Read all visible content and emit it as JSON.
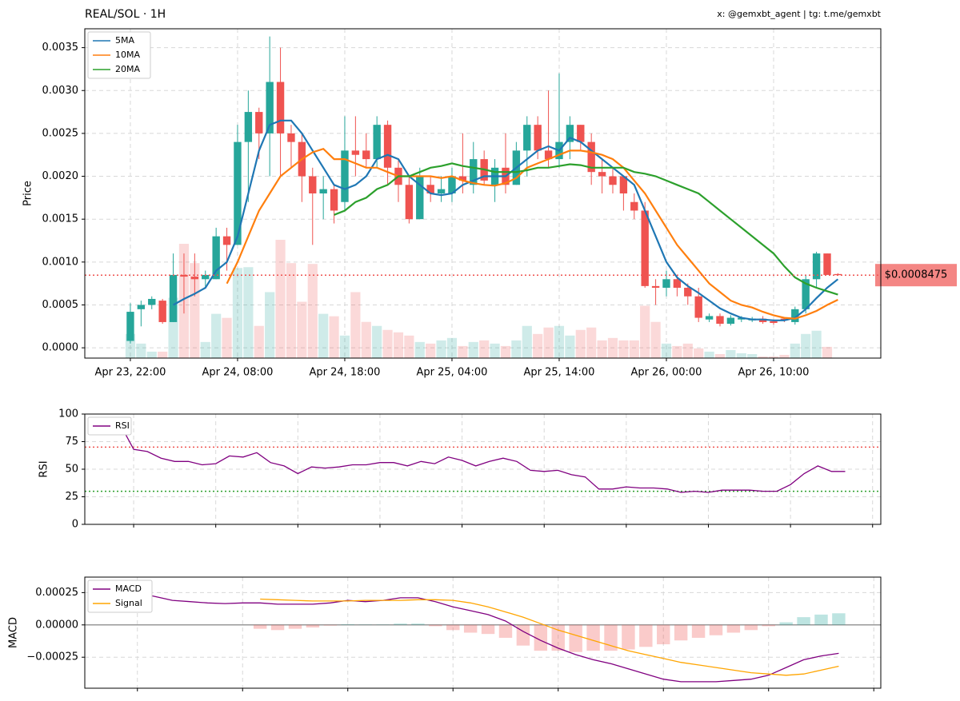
{
  "chart_data": [
    {
      "type": "candlestick",
      "title": "REAL/SOL · 1H",
      "credit": "x: @gemxbt_agent | tg: t.me/gemxbt",
      "ylabel": "Price",
      "xlim": [
        -4.25,
        70
      ],
      "ylim": [
        -0.00012,
        0.00372
      ],
      "grid": true,
      "legend": "upper left",
      "xticks": [
        {
          "value": 0,
          "label": "Apr 23, 22:00"
        },
        {
          "value": 10,
          "label": "Apr 24, 08:00"
        },
        {
          "value": 20,
          "label": "Apr 24, 18:00"
        },
        {
          "value": 30,
          "label": "Apr 25, 04:00"
        },
        {
          "value": 40,
          "label": "Apr 25, 14:00"
        },
        {
          "value": 50,
          "label": "Apr 26, 00:00"
        },
        {
          "value": 60,
          "label": "Apr 26, 10:00"
        }
      ],
      "yticks": [
        {
          "value": 0,
          "label": "0.0000"
        },
        {
          "value": 0.0005,
          "label": "0.0005"
        },
        {
          "value": 0.001,
          "label": "0.0010"
        },
        {
          "value": 0.0015,
          "label": "0.0015"
        },
        {
          "value": 0.002,
          "label": "0.0020"
        },
        {
          "value": 0.0025,
          "label": "0.0025"
        },
        {
          "value": 0.003,
          "label": "0.0030"
        },
        {
          "value": 0.0035,
          "label": "0.0035"
        }
      ],
      "up_color": "#26a69a",
      "down_color": "#ef5350",
      "open": [
        8e-05,
        0.00045,
        0.0005,
        0.00055,
        0.0003,
        0.00085,
        0.00083,
        0.0008,
        0.0008,
        0.0013,
        0.0012,
        0.0024,
        0.00275,
        0.0025,
        0.0031,
        0.0025,
        0.0024,
        0.002,
        0.0018,
        0.00185,
        0.0017,
        0.0023,
        0.0023,
        0.0022,
        0.0026,
        0.0021,
        0.0019,
        0.0015,
        0.0019,
        0.0018,
        0.0018,
        0.002,
        0.0019,
        0.0022,
        0.0019,
        0.0021,
        0.0019,
        0.0023,
        0.0026,
        0.0023,
        0.0022,
        0.0024,
        0.0026,
        0.0024,
        0.00205,
        0.002,
        0.002,
        0.0017,
        0.0016,
        0.00072,
        0.0007,
        0.0008,
        0.0007,
        0.0006,
        0.00033,
        0.00037,
        0.00028,
        0.00033,
        0.00032,
        0.00034,
        0.00031,
        0.00034,
        0.0003,
        0.00045,
        0.0008,
        0.0011,
        0.00086
      ],
      "high": [
        0.00052,
        0.00055,
        0.0006,
        0.00057,
        0.0011,
        0.0011,
        0.0011,
        0.0009,
        0.0014,
        0.0014,
        0.0026,
        0.003,
        0.0028,
        0.00363,
        0.0035,
        0.0026,
        0.0025,
        0.0021,
        0.002,
        0.0019,
        0.0027,
        0.0027,
        0.0025,
        0.0027,
        0.00265,
        0.0022,
        0.002,
        0.0021,
        0.002,
        0.002,
        0.0021,
        0.0025,
        0.0024,
        0.0023,
        0.0022,
        0.0025,
        0.0024,
        0.0027,
        0.0027,
        0.003,
        0.0032,
        0.0027,
        0.0026,
        0.0025,
        0.0022,
        0.0021,
        0.002,
        0.0018,
        0.0017,
        0.0008,
        0.0009,
        0.00085,
        0.00075,
        0.0007,
        0.0004,
        0.0004,
        0.00038,
        0.00037,
        0.00036,
        0.00037,
        0.00033,
        0.00036,
        0.00048,
        0.00085,
        0.00112,
        0.0011,
        0.00087
      ],
      "low": [
        5e-05,
        0.00025,
        0.00045,
        0.00028,
        0.0003,
        0.0004,
        0.0006,
        0.0007,
        0.0008,
        0.0009,
        0.0012,
        0.0017,
        0.0022,
        0.002,
        0.002,
        0.0021,
        0.0017,
        0.0012,
        0.0015,
        0.00145,
        0.0016,
        0.002,
        0.0021,
        0.0021,
        0.0019,
        0.0017,
        0.00145,
        0.0015,
        0.0017,
        0.0017,
        0.0017,
        0.0018,
        0.0018,
        0.0019,
        0.0017,
        0.0018,
        0.0019,
        0.002,
        0.0022,
        0.0021,
        0.0021,
        0.0022,
        0.0023,
        0.0019,
        0.0018,
        0.0018,
        0.0016,
        0.0015,
        0.0007,
        0.0005,
        0.0006,
        0.0006,
        0.0005,
        0.0003,
        0.0003,
        0.00025,
        0.00026,
        0.0003,
        0.0003,
        0.00028,
        0.00027,
        0.0003,
        0.00027,
        0.0004,
        0.0007,
        0.00085,
        0.00084
      ],
      "close": [
        0.00042,
        0.0005,
        0.00057,
        0.0003,
        0.00085,
        0.00083,
        0.0008,
        0.00085,
        0.0013,
        0.0012,
        0.0024,
        0.00275,
        0.0025,
        0.0031,
        0.0025,
        0.0024,
        0.002,
        0.0018,
        0.00185,
        0.0016,
        0.0023,
        0.00225,
        0.0022,
        0.0026,
        0.0021,
        0.0019,
        0.0015,
        0.002,
        0.0018,
        0.00185,
        0.002,
        0.00195,
        0.0022,
        0.00195,
        0.0021,
        0.0019,
        0.0023,
        0.0026,
        0.0023,
        0.0022,
        0.0024,
        0.0026,
        0.0024,
        0.00205,
        0.002,
        0.0019,
        0.0018,
        0.0016,
        0.00072,
        0.0007,
        0.0008,
        0.0007,
        0.0006,
        0.00035,
        0.00037,
        0.00028,
        0.00035,
        0.00035,
        0.00034,
        0.0003,
        0.00029,
        0.00032,
        0.00045,
        0.0008,
        0.0011,
        0.00085,
        0.0008475
      ],
      "volume": [
        30,
        18,
        8,
        8,
        75,
        142,
        118,
        20,
        55,
        50,
        112,
        113,
        40,
        82,
        147,
        118,
        70,
        117,
        55,
        52,
        28,
        82,
        45,
        40,
        35,
        32,
        28,
        20,
        18,
        22,
        25,
        15,
        20,
        22,
        18,
        15,
        22,
        40,
        30,
        38,
        40,
        28,
        35,
        38,
        22,
        25,
        22,
        22,
        65,
        45,
        18,
        15,
        18,
        12,
        8,
        5,
        10,
        6,
        5,
        2,
        2,
        4,
        18,
        30,
        34,
        14,
        0
      ],
      "series": [
        {
          "name": "5MA",
          "color": "#1f77b4",
          "values": [
            null,
            null,
            null,
            null,
            0.0005,
            0.00057,
            0.00063,
            0.0007,
            0.0009,
            0.001,
            0.0013,
            0.0018,
            0.0023,
            0.0026,
            0.00265,
            0.00265,
            0.0025,
            0.0023,
            0.0021,
            0.0019,
            0.00185,
            0.0019,
            0.002,
            0.0022,
            0.00225,
            0.0022,
            0.002,
            0.0019,
            0.0018,
            0.00178,
            0.0018,
            0.0019,
            0.00195,
            0.002,
            0.002,
            0.002,
            0.0021,
            0.0022,
            0.0023,
            0.00235,
            0.0023,
            0.00245,
            0.0024,
            0.0023,
            0.0022,
            0.0021,
            0.002,
            0.0019,
            0.0016,
            0.0013,
            0.001,
            0.00082,
            0.00072,
            0.00064,
            0.00055,
            0.00046,
            0.0004,
            0.00035,
            0.00033,
            0.00033,
            0.00032,
            0.00032,
            0.00035,
            0.00045,
            0.00058,
            0.0007,
            0.0008
          ]
        },
        {
          "name": "10MA",
          "color": "#ff7f0e",
          "values": [
            null,
            null,
            null,
            null,
            null,
            null,
            null,
            null,
            null,
            0.00075,
            0.001,
            0.0013,
            0.0016,
            0.0018,
            0.002,
            0.0021,
            0.0022,
            0.00228,
            0.00232,
            0.0022,
            0.0022,
            0.00215,
            0.0021,
            0.0021,
            0.00205,
            0.002,
            0.002,
            0.002,
            0.002,
            0.00198,
            0.002,
            0.00195,
            0.00192,
            0.0019,
            0.00189,
            0.00192,
            0.00198,
            0.0021,
            0.00215,
            0.0022,
            0.00225,
            0.0023,
            0.0023,
            0.00228,
            0.00225,
            0.0022,
            0.0021,
            0.00195,
            0.0018,
            0.0016,
            0.0014,
            0.0012,
            0.00105,
            0.0009,
            0.00075,
            0.00065,
            0.00055,
            0.0005,
            0.00047,
            0.00042,
            0.00038,
            0.00035,
            0.00034,
            0.00038,
            0.00043,
            0.0005,
            0.00056
          ]
        },
        {
          "name": "20MA",
          "color": "#2ca02c",
          "values": [
            null,
            null,
            null,
            null,
            null,
            null,
            null,
            null,
            null,
            null,
            null,
            null,
            null,
            null,
            null,
            null,
            null,
            null,
            null,
            0.00155,
            0.0016,
            0.0017,
            0.00175,
            0.00185,
            0.0019,
            0.002,
            0.002,
            0.00205,
            0.0021,
            0.00212,
            0.00215,
            0.00212,
            0.0021,
            0.00208,
            0.00205,
            0.00205,
            0.00205,
            0.00207,
            0.0021,
            0.0021,
            0.00212,
            0.00214,
            0.00213,
            0.0021,
            0.0021,
            0.0021,
            0.0021,
            0.00205,
            0.00203,
            0.002,
            0.00195,
            0.0019,
            0.00185,
            0.0018,
            0.0017,
            0.0016,
            0.0015,
            0.0014,
            0.0013,
            0.0012,
            0.0011,
            0.00095,
            0.00082,
            0.00075,
            0.0007,
            0.00066,
            0.00062
          ]
        }
      ],
      "last_price": {
        "value": 0.0008475,
        "label": "$0.0008475"
      },
      "last_price_color": "#ef5350"
    },
    {
      "type": "line",
      "ylabel": "RSI",
      "xlim": [
        -2.57,
        55.6
      ],
      "ylim": [
        0,
        100
      ],
      "grid": true,
      "legend": "upper left",
      "xticks": [
        1,
        7,
        13,
        19,
        25,
        31,
        37,
        43,
        49,
        55
      ],
      "yticks": [
        0,
        25,
        50,
        75,
        100
      ],
      "levels": [
        {
          "value": 70,
          "color": "#ef5350"
        },
        {
          "value": 30,
          "color": "#2ca02c"
        }
      ],
      "series": [
        {
          "name": "RSI",
          "color": "#800080",
          "values": [
            91,
            68,
            66,
            60,
            57,
            57,
            54,
            55,
            62,
            61,
            65,
            56,
            53,
            46,
            52,
            51,
            52,
            54,
            54,
            56,
            56,
            53,
            57,
            55,
            61,
            58,
            53,
            57,
            60,
            57,
            49,
            48,
            49,
            45,
            43,
            32,
            32,
            34,
            33,
            33,
            32,
            29,
            30,
            29,
            31,
            31,
            31,
            30,
            30,
            36,
            46,
            53,
            48,
            48
          ]
        }
      ]
    },
    {
      "type": "macd",
      "ylabel": "MACD",
      "xlim": [
        -2,
        43.4
      ],
      "ylim": [
        -0.00049,
        0.00037
      ],
      "grid": true,
      "legend": "upper left",
      "xticks": [
        1,
        7,
        13,
        19,
        25,
        31,
        37,
        43
      ],
      "yticks": [
        {
          "value": 0.00025,
          "label": "0.00025"
        },
        {
          "value": 0,
          "label": "0.00000"
        },
        {
          "value": -0.00025,
          "label": "−0.00025"
        }
      ],
      "hist_up_color": "#26a69a",
      "hist_down_color": "#ef5350",
      "histogram": [
        null,
        null,
        null,
        null,
        null,
        null,
        null,
        null,
        -3e-05,
        -4e-05,
        -3e-05,
        -2e-05,
        -5e-06,
        5e-06,
        3e-06,
        3e-06,
        1e-05,
        1e-05,
        -1e-05,
        -4e-05,
        -6e-05,
        -7e-05,
        -0.0001,
        -0.00016,
        -0.0002,
        -0.0002,
        -0.00021,
        -0.0002,
        -0.0002,
        -0.00019,
        -0.00017,
        -0.00015,
        -0.00012,
        -0.0001,
        -8e-05,
        -6e-05,
        -4e-05,
        -1e-05,
        2e-05,
        6e-05,
        8e-05,
        9e-05
      ],
      "series": [
        {
          "name": "MACD",
          "color": "#800080",
          "values": [
            0.00029,
            0.00025,
            0.00022,
            0.00019,
            0.00018,
            0.00017,
            0.000165,
            0.00017,
            0.00017,
            0.00016,
            0.00016,
            0.00016,
            0.00017,
            0.00019,
            0.00018,
            0.00019,
            0.00021,
            0.00021,
            0.00018,
            0.00014,
            0.00011,
            8e-05,
            3e-05,
            -5e-05,
            -0.00012,
            -0.00018,
            -0.00023,
            -0.00027,
            -0.0003,
            -0.00034,
            -0.00038,
            -0.00042,
            -0.00044,
            -0.00044,
            -0.00044,
            -0.00043,
            -0.00042,
            -0.00039,
            -0.00033,
            -0.00027,
            -0.00024,
            -0.00022
          ]
        },
        {
          "name": "Signal",
          "color": "#ffa500",
          "values": [
            null,
            null,
            null,
            null,
            null,
            null,
            null,
            null,
            0.0002,
            0.000195,
            0.00019,
            0.000185,
            0.000185,
            0.000185,
            0.00019,
            0.00019,
            0.00019,
            0.000195,
            0.000195,
            0.00019,
            0.00017,
            0.00014,
            0.0001,
            6e-05,
            1e-05,
            -4e-05,
            -8e-05,
            -0.00012,
            -0.00016,
            -0.0002,
            -0.00023,
            -0.00026,
            -0.00029,
            -0.00031,
            -0.00033,
            -0.00035,
            -0.00037,
            -0.00038,
            -0.00039,
            -0.00038,
            -0.00035,
            -0.00032
          ]
        }
      ]
    }
  ]
}
